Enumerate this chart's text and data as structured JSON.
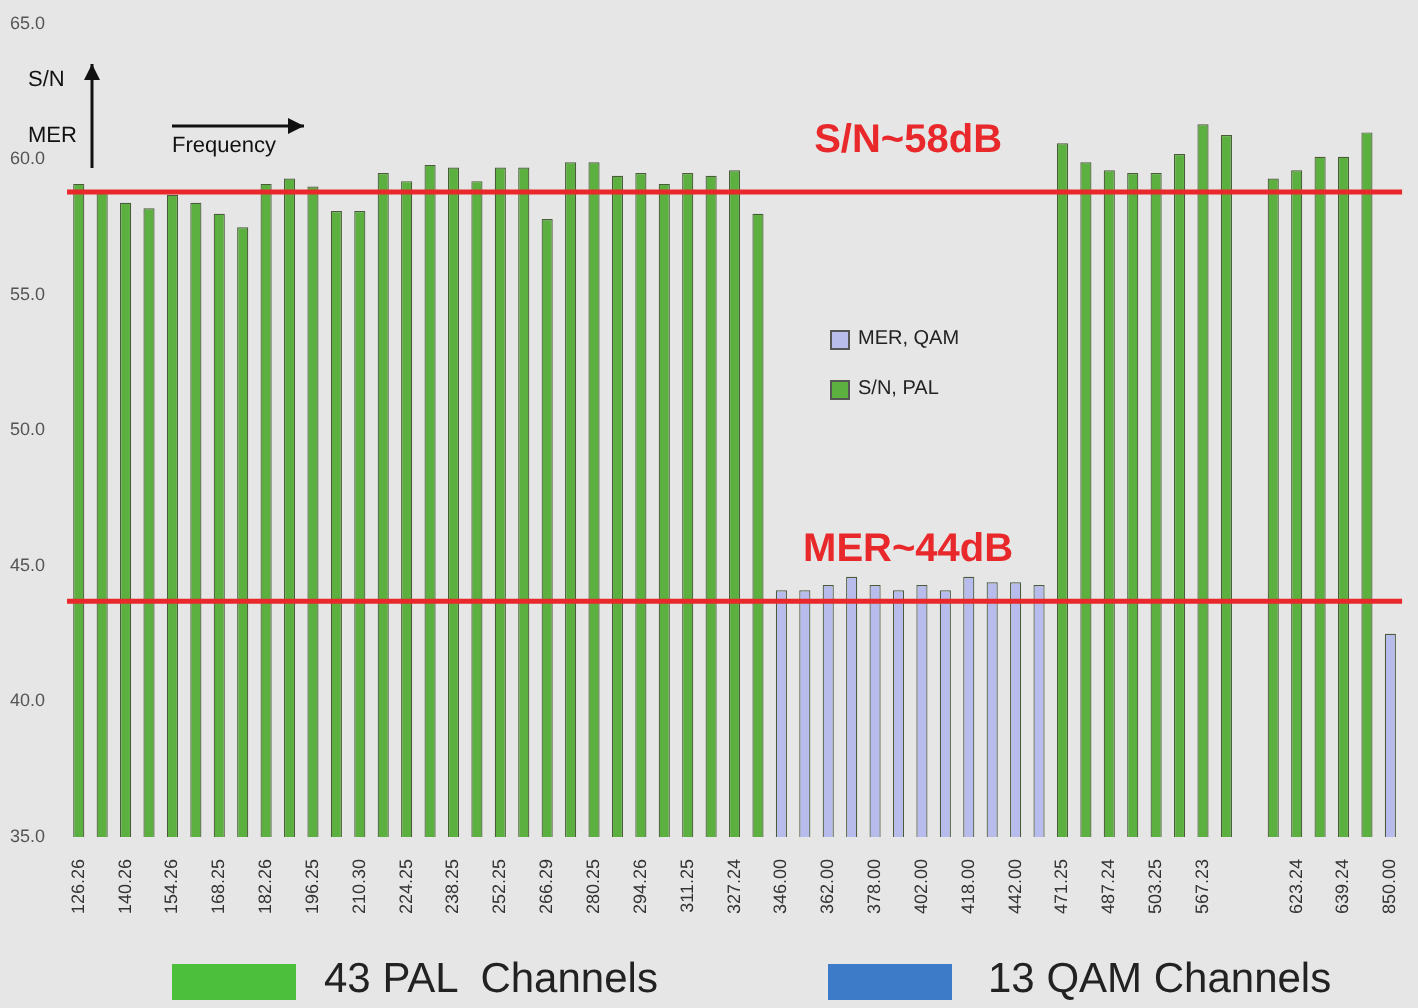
{
  "chart_data": {
    "type": "bar",
    "categories": [
      "126.26",
      null,
      "140.26",
      null,
      "154.26",
      null,
      "168.25",
      null,
      "182.26",
      null,
      "196.25",
      null,
      "210.30",
      null,
      "224.25",
      null,
      "238.25",
      null,
      "252.25",
      null,
      "266.29",
      null,
      "280.25",
      null,
      "294.26",
      null,
      "311.25",
      null,
      "327.24",
      null,
      "346.00",
      null,
      "362.00",
      null,
      "378.00",
      null,
      "402.00",
      null,
      "418.00",
      null,
      "442.00",
      null,
      "471.25",
      null,
      "487.24",
      null,
      "503.25",
      null,
      "567.23",
      null,
      null,
      null,
      "623.24",
      null,
      "639.24",
      null,
      "850.00"
    ],
    "series": [
      {
        "name": "MER, QAM",
        "color": "#b8bcec",
        "values": [
          null,
          null,
          null,
          null,
          null,
          null,
          null,
          null,
          null,
          null,
          null,
          null,
          null,
          null,
          null,
          null,
          null,
          null,
          null,
          null,
          null,
          null,
          null,
          null,
          null,
          null,
          null,
          null,
          null,
          null,
          44.1,
          44.1,
          44.3,
          44.6,
          44.3,
          44.1,
          44.3,
          44.1,
          44.6,
          44.4,
          44.4,
          44.3,
          null,
          null,
          null,
          null,
          null,
          null,
          null,
          null,
          null,
          null,
          null,
          null,
          null,
          null,
          42.5
        ]
      },
      {
        "name": "S/N, PAL",
        "color": "#5cb040",
        "values": [
          59.1,
          58.8,
          58.4,
          58.2,
          58.7,
          58.4,
          58.0,
          57.5,
          59.1,
          59.3,
          59.0,
          58.1,
          58.1,
          59.5,
          59.2,
          59.8,
          59.7,
          59.2,
          59.7,
          59.7,
          57.8,
          59.9,
          59.9,
          59.4,
          59.5,
          59.1,
          59.5,
          59.4,
          59.6,
          58.0,
          null,
          null,
          null,
          null,
          null,
          null,
          null,
          null,
          null,
          null,
          null,
          null,
          60.6,
          59.9,
          59.6,
          59.5,
          59.5,
          60.2,
          61.3,
          60.9,
          null,
          59.3,
          59.6,
          60.1,
          60.1,
          61.0,
          null
        ]
      }
    ],
    "ylim": [
      35,
      65
    ],
    "yticks": [
      {
        "value": 35,
        "label": "35.0"
      },
      {
        "value": 40,
        "label": "40.0"
      },
      {
        "value": 45,
        "label": "45.0"
      },
      {
        "value": 50,
        "label": "50.0"
      },
      {
        "value": 55,
        "label": "55.0"
      },
      {
        "value": 60,
        "label": "60.0"
      },
      {
        "value": 65,
        "label": "65.0"
      }
    ],
    "ref_lines": [
      {
        "axis": "y",
        "value": 58.8,
        "label": "S/N~58dB",
        "color": "#e8282a"
      },
      {
        "axis": "y",
        "value": 43.7,
        "label": "MER~44dB",
        "color": "#e8282a"
      }
    ],
    "legend": "center",
    "grid": false,
    "annotations": [
      "S/N",
      "MER",
      "Frequency",
      "43 PAL  Channels",
      "13 QAM Channels"
    ]
  }
}
